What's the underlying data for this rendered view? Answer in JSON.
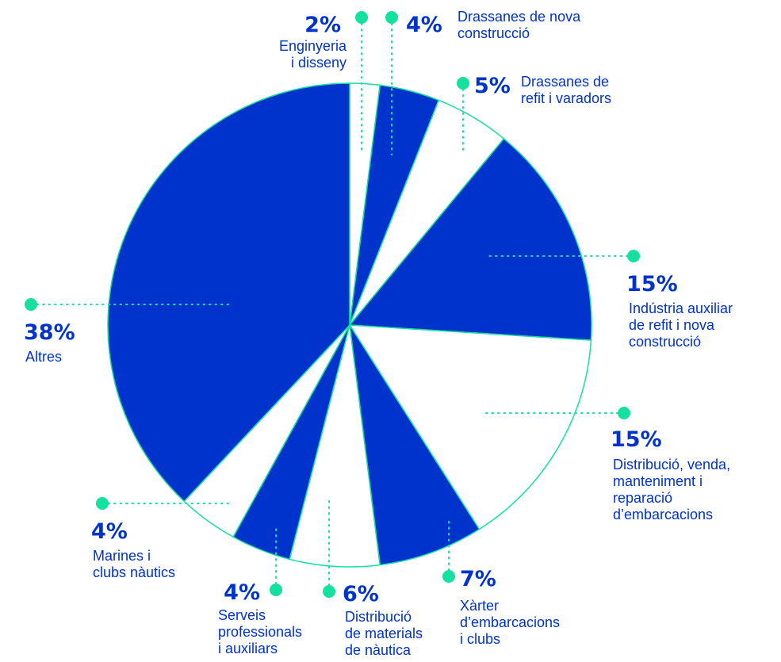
{
  "colors": {
    "primary": "#0033cc",
    "secondary": "#ffffff",
    "accent": "#14e0a0"
  },
  "chart_data": {
    "type": "pie",
    "slices": [
      {
        "pct": "2%",
        "value": 2,
        "lines": [
          "Enginyeria",
          "i disseny"
        ],
        "fill": "secondary"
      },
      {
        "pct": "4%",
        "value": 4,
        "lines": [
          "Drassanes de nova",
          "construcció"
        ],
        "fill": "primary"
      },
      {
        "pct": "5%",
        "value": 5,
        "lines": [
          "Drassanes de",
          "refit i varadors"
        ],
        "fill": "secondary"
      },
      {
        "pct": "15%",
        "value": 15,
        "lines": [
          "Indústria auxiliar",
          "de refit i nova",
          "construcció"
        ],
        "fill": "primary"
      },
      {
        "pct": "15%",
        "value": 15,
        "lines": [
          "Distribució, venda,",
          "manteniment i",
          "reparació",
          "d’embarcacions"
        ],
        "fill": "secondary"
      },
      {
        "pct": "7%",
        "value": 7,
        "lines": [
          "Xàrter",
          "d’embarcacions",
          "i clubs"
        ],
        "fill": "primary"
      },
      {
        "pct": "6%",
        "value": 6,
        "lines": [
          "Distribució",
          "de materials",
          "de nàutica"
        ],
        "fill": "secondary"
      },
      {
        "pct": "4%",
        "value": 4,
        "lines": [
          "Serveis",
          "professionals",
          "i auxiliars"
        ],
        "fill": "primary"
      },
      {
        "pct": "4%",
        "value": 4,
        "lines": [
          "Marines i",
          "clubs nàutics"
        ],
        "fill": "secondary"
      },
      {
        "pct": "38%",
        "value": 38,
        "lines": [
          "Altres"
        ],
        "fill": "primary"
      }
    ]
  }
}
